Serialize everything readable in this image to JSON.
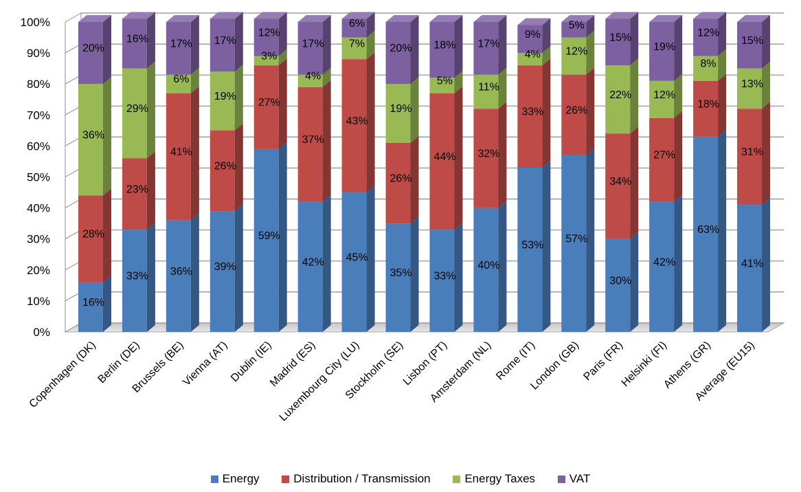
{
  "chart_data": {
    "type": "bar",
    "stacked": true,
    "three_d": true,
    "categories": [
      "Copenhagen (DK)",
      "Berlin (DE)",
      "Brussels (BE)",
      "Vienna (AT)",
      "Dublin (IE)",
      "Madrid (ES)",
      "Luxembourg City (LU)",
      "Stockholm (SE)",
      "Lisbon (PT)",
      "Amsterdam (NL)",
      "Rome (IT)",
      "London (GB)",
      "Paris (FR)",
      "Helsinki (FI)",
      "Athens (GR)",
      "Average (EU15)"
    ],
    "series": [
      {
        "name": "Energy",
        "color": "#4a7ebb",
        "values": [
          16,
          33,
          36,
          39,
          59,
          42,
          45,
          35,
          33,
          40,
          53,
          57,
          30,
          42,
          63,
          41
        ]
      },
      {
        "name": "Distribution / Transmission",
        "color": "#be4b48",
        "values": [
          28,
          23,
          41,
          26,
          27,
          37,
          43,
          26,
          44,
          32,
          33,
          26,
          34,
          27,
          18,
          31
        ]
      },
      {
        "name": "Energy Taxes",
        "color": "#98b954",
        "values": [
          36,
          29,
          6,
          19,
          3,
          4,
          7,
          19,
          5,
          11,
          4,
          12,
          22,
          12,
          8,
          13
        ]
      },
      {
        "name": "VAT",
        "color": "#7d60a0",
        "values": [
          20,
          16,
          17,
          17,
          12,
          17,
          6,
          20,
          18,
          17,
          9,
          5,
          15,
          19,
          12,
          15
        ]
      }
    ],
    "value_suffix": "%",
    "ylim": [
      0,
      100
    ],
    "yticks": [
      "0%",
      "10%",
      "20%",
      "30%",
      "40%",
      "50%",
      "60%",
      "70%",
      "80%",
      "90%",
      "100%"
    ],
    "grid": true,
    "legend_position": "bottom",
    "title": "",
    "xlabel": "",
    "ylabel": ""
  }
}
